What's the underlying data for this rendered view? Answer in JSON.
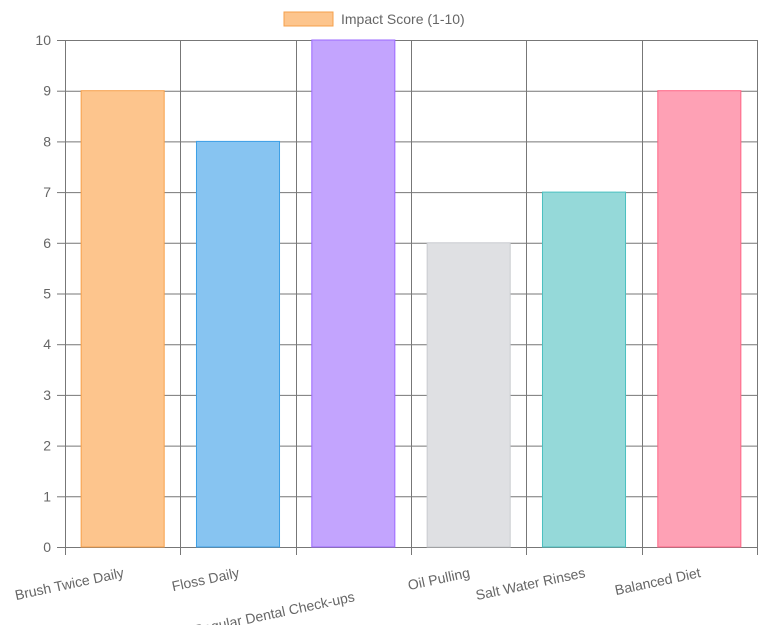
{
  "chart_data": {
    "type": "bar",
    "legend": {
      "label": "Impact Score (1-10)",
      "position": "top",
      "swatch_fill": "#fdc58d",
      "swatch_stroke": "#f5a04b"
    },
    "categories": [
      "Brush Twice Daily",
      "Floss Daily",
      "Regular Dental Check-ups",
      "Oil Pulling",
      "Salt Water Rinses",
      "Balanced Diet"
    ],
    "series": [
      {
        "name": "Impact Score (1-10)",
        "values": [
          9,
          8,
          10,
          6,
          7,
          9
        ]
      }
    ],
    "bar_fills": [
      "#fdc58d",
      "#87c4f1",
      "#c3a4fe",
      "#dfe0e3",
      "#95d9d9",
      "#fea1b5"
    ],
    "bar_strokes": [
      "#f7a04a",
      "#3d9fe6",
      "#9b68ff",
      "#c9cbcf",
      "#4bc0c0",
      "#ff6384"
    ],
    "ylim": [
      0,
      10
    ],
    "yticks": [
      "0",
      "1",
      "2",
      "3",
      "4",
      "5",
      "6",
      "7",
      "8",
      "9",
      "10"
    ],
    "grid": true
  }
}
